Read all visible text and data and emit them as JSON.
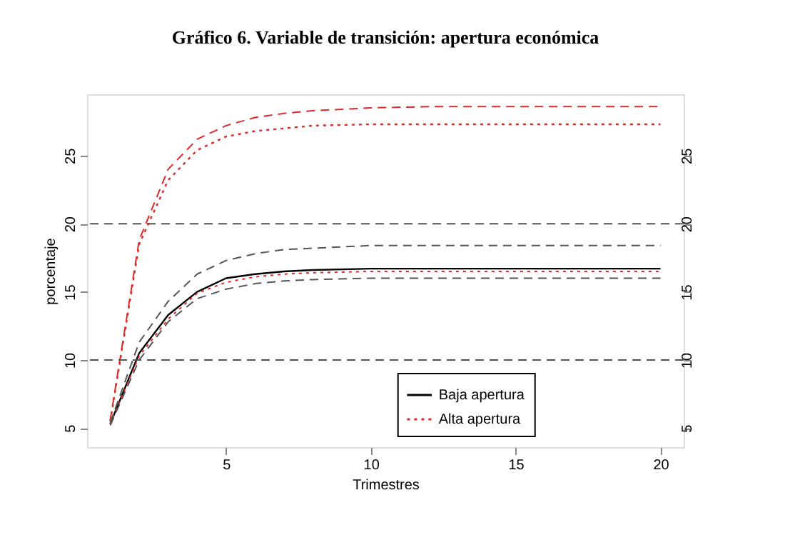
{
  "chart_data": {
    "type": "line",
    "title": "Gráfico 6. Variable de transición: apertura económica",
    "xlabel": "Trimestres",
    "ylabel": "porcentaje",
    "x": [
      1,
      2,
      3,
      4,
      5,
      6,
      7,
      8,
      10,
      12,
      15,
      20
    ],
    "series": [
      {
        "name": "Baja apertura",
        "color": "#000000",
        "line_style": "solid",
        "values": [
          5.3,
          10.5,
          13.3,
          15.0,
          16.0,
          16.3,
          16.5,
          16.6,
          16.7,
          16.7,
          16.7,
          16.7
        ]
      },
      {
        "name": "Alta apertura",
        "color": "#e02828",
        "line_style": "dotted",
        "values": [
          5.5,
          18.5,
          23.2,
          25.4,
          26.4,
          26.8,
          27.0,
          27.2,
          27.3,
          27.3,
          27.3,
          27.3
        ]
      },
      {
        "color": "#e02828",
        "line_style": "dashed",
        "values": [
          5.6,
          18.8,
          24.0,
          26.2,
          27.2,
          27.8,
          28.1,
          28.3,
          28.5,
          28.6,
          28.6,
          28.6
        ]
      },
      {
        "color": "#e02828",
        "line_style": "dotted",
        "values": [
          5.3,
          10.3,
          13.0,
          14.9,
          15.7,
          16.1,
          16.3,
          16.4,
          16.5,
          16.5,
          16.5,
          16.5
        ]
      },
      {
        "color": "#555555",
        "line_style": "dashed",
        "values": [
          5.4,
          11.3,
          14.3,
          16.3,
          17.3,
          17.8,
          18.1,
          18.2,
          18.4,
          18.4,
          18.4,
          18.4
        ]
      },
      {
        "color": "#555555",
        "line_style": "dashed",
        "values": [
          5.2,
          10.0,
          12.8,
          14.5,
          15.2,
          15.6,
          15.8,
          15.9,
          16.0,
          16.0,
          16.0,
          16.0
        ]
      }
    ],
    "xlim": [
      0.2,
      20.8
    ],
    "xticks": [
      5,
      10,
      15,
      20
    ],
    "ylim": [
      3.6,
      29.5
    ],
    "yticks": [
      5,
      10,
      15,
      20,
      25
    ],
    "y2lim": [
      3.6,
      29.5
    ],
    "y2ticks": [
      5,
      10,
      15,
      20,
      25
    ],
    "ref_lines": [
      {
        "axis": "y",
        "value": 10,
        "color": "#555555",
        "line_style": "dashed"
      },
      {
        "axis": "y",
        "value": 20,
        "color": "#555555",
        "line_style": "dashed"
      }
    ],
    "legend": "bottom right",
    "grid": false
  }
}
